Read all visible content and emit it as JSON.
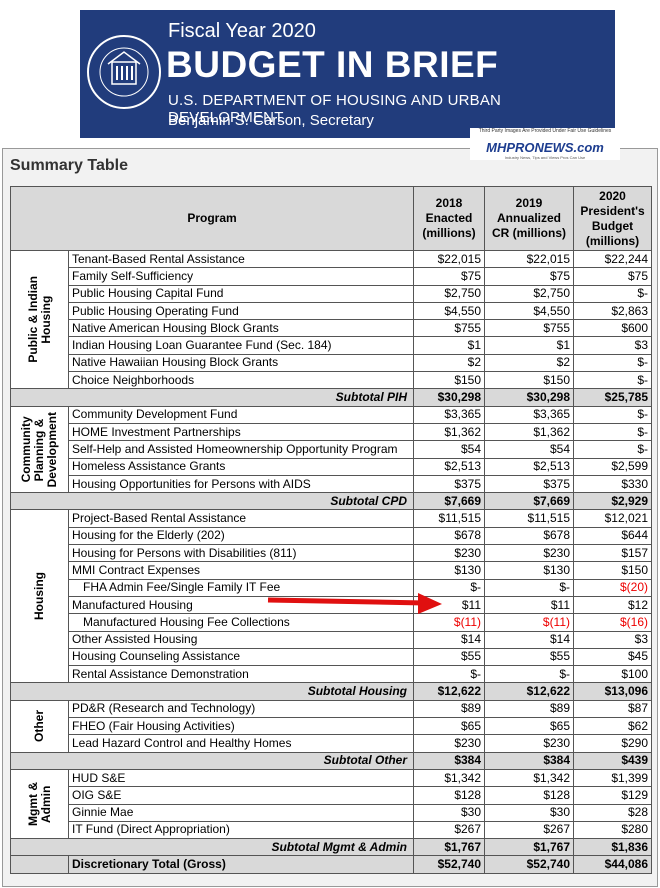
{
  "header": {
    "fiscal_year": "Fiscal Year 2020",
    "title": "BUDGET IN BRIEF",
    "department": "U.S. DEPARTMENT OF HOUSING AND URBAN DEVELOPMENT",
    "secretary": "Benjamin S. Carson, Secretary"
  },
  "watermark": {
    "notice": "Third Party Images Are Provided Under Fair Use Guidelines",
    "brand": "MHPRONEWS.com",
    "tagline": "Industry News, Tips and Views Pros Can Use"
  },
  "table": {
    "title": "Summary Table",
    "columns": [
      "Program",
      "2018\nEnacted\n(millions)",
      "2019\nAnnualized\nCR (millions)",
      "2020\nPresident's\nBudget\n(millions)"
    ],
    "groups": [
      {
        "label": "Public & Indian\nHousing",
        "rows": [
          [
            "Tenant-Based Rental Assistance",
            "$22,015",
            "$22,015",
            "$22,244"
          ],
          [
            "Family Self-Sufficiency",
            "$75",
            "$75",
            "$75"
          ],
          [
            "Public Housing Capital Fund",
            "$2,750",
            "$2,750",
            "$-"
          ],
          [
            "Public Housing Operating Fund",
            "$4,550",
            "$4,550",
            "$2,863"
          ],
          [
            "Native American Housing Block Grants",
            "$755",
            "$755",
            "$600"
          ],
          [
            "Indian Housing Loan Guarantee Fund (Sec. 184)",
            "$1",
            "$1",
            "$3"
          ],
          [
            "Native Hawaiian Housing Block Grants",
            "$2",
            "$2",
            "$-"
          ],
          [
            "Choice Neighborhoods",
            "$150",
            "$150",
            "$-"
          ]
        ],
        "subtotal": [
          "Subtotal PIH",
          "$30,298",
          "$30,298",
          "$25,785"
        ]
      },
      {
        "label": "Community\nPlanning &\nDevelopment",
        "rows": [
          [
            "Community Development Fund",
            "$3,365",
            "$3,365",
            "$-"
          ],
          [
            "HOME Investment Partnerships",
            "$1,362",
            "$1,362",
            "$-"
          ],
          [
            "Self-Help and Assisted Homeownership Opportunity Program",
            "$54",
            "$54",
            "$-"
          ],
          [
            "Homeless Assistance Grants",
            "$2,513",
            "$2,513",
            "$2,599"
          ],
          [
            "Housing Opportunities for Persons with AIDS",
            "$375",
            "$375",
            "$330"
          ]
        ],
        "subtotal": [
          "Subtotal CPD",
          "$7,669",
          "$7,669",
          "$2,929"
        ]
      },
      {
        "label": "Housing",
        "rows": [
          [
            "Project-Based Rental Assistance",
            "$11,515",
            "$11,515",
            "$12,021"
          ],
          [
            "Housing for the Elderly (202)",
            "$678",
            "$678",
            "$644"
          ],
          [
            "Housing for Persons with Disabilities (811)",
            "$230",
            "$230",
            "$157"
          ],
          [
            "MMI Contract Expenses",
            "$130",
            "$130",
            "$150"
          ],
          [
            "FHA Admin Fee/Single Family IT Fee",
            "$-",
            "$-",
            "$(20)"
          ],
          [
            "Manufactured Housing",
            "$11",
            "$11",
            "$12"
          ],
          [
            "Manufactured Housing Fee Collections",
            "$(11)",
            "$(11)",
            "$(16)"
          ],
          [
            "Other Assisted Housing",
            "$14",
            "$14",
            "$3"
          ],
          [
            "Housing Counseling Assistance",
            "$55",
            "$55",
            "$45"
          ],
          [
            "Rental Assistance Demonstration",
            "$-",
            "$-",
            "$100"
          ]
        ],
        "subtotal": [
          "Subtotal Housing",
          "$12,622",
          "$12,622",
          "$13,096"
        ]
      },
      {
        "label": "Other",
        "rows": [
          [
            "PD&R (Research and Technology)",
            "$89",
            "$89",
            "$87"
          ],
          [
            "FHEO (Fair Housing Activities)",
            "$65",
            "$65",
            "$62"
          ],
          [
            "Lead Hazard Control and Healthy Homes",
            "$230",
            "$230",
            "$290"
          ]
        ],
        "subtotal": [
          "Subtotal Other",
          "$384",
          "$384",
          "$439"
        ]
      },
      {
        "label": "Mgmt &\nAdmin",
        "rows": [
          [
            "HUD S&E",
            "$1,342",
            "$1,342",
            "$1,399"
          ],
          [
            "OIG S&E",
            "$128",
            "$128",
            "$129"
          ],
          [
            "Ginnie Mae",
            "$30",
            "$30",
            "$28"
          ],
          [
            "IT Fund (Direct Appropriation)",
            "$267",
            "$267",
            "$280"
          ]
        ],
        "subtotal": [
          "Subtotal Mgmt & Admin",
          "$1,767",
          "$1,767",
          "$1,836"
        ]
      }
    ],
    "total": [
      "Discretionary Total (Gross)",
      "$52,740",
      "$52,740",
      "$44,086"
    ]
  }
}
